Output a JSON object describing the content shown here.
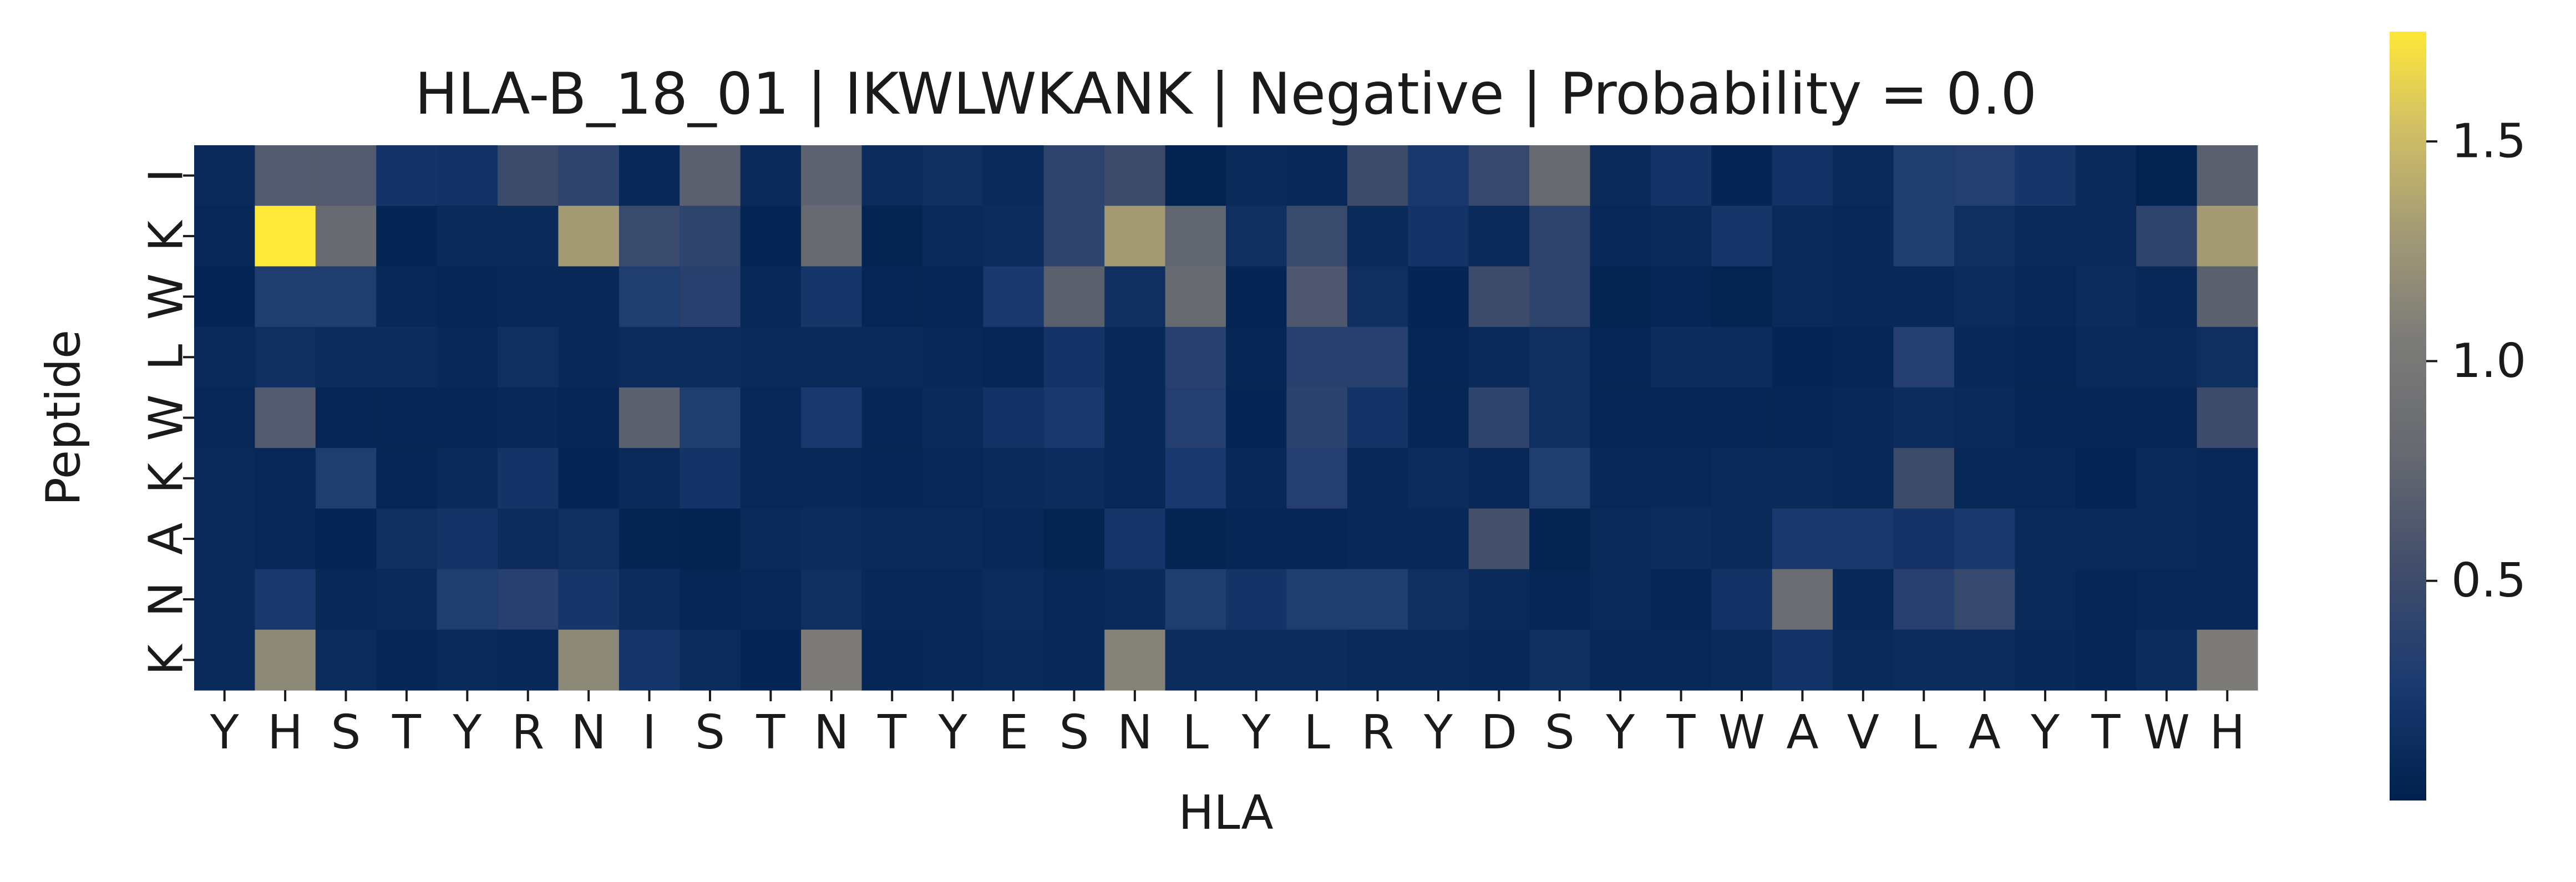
{
  "chart_data": {
    "type": "heatmap",
    "title": "HLA-B_18_01 | IKWLWKANK | Negative | Probability = 0.0",
    "xlabel": "HLA",
    "ylabel": "Peptide",
    "x_labels": [
      "Y",
      "H",
      "S",
      "T",
      "Y",
      "R",
      "N",
      "I",
      "S",
      "T",
      "N",
      "T",
      "Y",
      "E",
      "S",
      "N",
      "L",
      "Y",
      "L",
      "R",
      "Y",
      "D",
      "S",
      "Y",
      "T",
      "W",
      "A",
      "V",
      "L",
      "A",
      "Y",
      "T",
      "W",
      "H"
    ],
    "y_labels": [
      "I",
      "K",
      "W",
      "L",
      "W",
      "K",
      "A",
      "N",
      "K"
    ],
    "colormap": "cividis",
    "colorbar": {
      "min": 0.0,
      "max": 1.75,
      "ticks": [
        0.5,
        1.0,
        1.5
      ],
      "tick_labels": [
        "0.5",
        "1.0",
        "1.5"
      ]
    },
    "values": [
      [
        0.1,
        0.65,
        0.65,
        0.2,
        0.18,
        0.5,
        0.4,
        0.08,
        0.7,
        0.1,
        0.72,
        0.12,
        0.15,
        0.1,
        0.4,
        0.5,
        0.02,
        0.1,
        0.08,
        0.5,
        0.25,
        0.45,
        0.8,
        0.1,
        0.2,
        0.05,
        0.18,
        0.1,
        0.3,
        0.32,
        0.22,
        0.1,
        0.02,
        0.7
      ],
      [
        0.08,
        1.75,
        0.8,
        0.05,
        0.1,
        0.1,
        1.3,
        0.48,
        0.4,
        0.05,
        0.8,
        0.04,
        0.1,
        0.12,
        0.4,
        1.3,
        0.75,
        0.15,
        0.48,
        0.1,
        0.2,
        0.1,
        0.4,
        0.08,
        0.1,
        0.22,
        0.1,
        0.08,
        0.3,
        0.15,
        0.1,
        0.1,
        0.4,
        1.3
      ],
      [
        0.05,
        0.3,
        0.3,
        0.08,
        0.06,
        0.08,
        0.08,
        0.3,
        0.35,
        0.08,
        0.22,
        0.06,
        0.06,
        0.25,
        0.7,
        0.15,
        0.8,
        0.05,
        0.62,
        0.15,
        0.05,
        0.5,
        0.4,
        0.04,
        0.06,
        0.04,
        0.1,
        0.08,
        0.08,
        0.12,
        0.08,
        0.12,
        0.08,
        0.7
      ],
      [
        0.1,
        0.15,
        0.12,
        0.12,
        0.08,
        0.15,
        0.08,
        0.12,
        0.12,
        0.1,
        0.1,
        0.1,
        0.08,
        0.06,
        0.2,
        0.08,
        0.35,
        0.06,
        0.35,
        0.35,
        0.06,
        0.1,
        0.15,
        0.06,
        0.12,
        0.12,
        0.05,
        0.06,
        0.32,
        0.08,
        0.06,
        0.1,
        0.1,
        0.15
      ],
      [
        0.08,
        0.65,
        0.06,
        0.06,
        0.06,
        0.08,
        0.06,
        0.7,
        0.3,
        0.08,
        0.25,
        0.06,
        0.1,
        0.18,
        0.25,
        0.08,
        0.32,
        0.05,
        0.38,
        0.2,
        0.06,
        0.4,
        0.15,
        0.06,
        0.06,
        0.06,
        0.06,
        0.08,
        0.12,
        0.1,
        0.06,
        0.06,
        0.06,
        0.5
      ],
      [
        0.1,
        0.08,
        0.3,
        0.06,
        0.1,
        0.2,
        0.05,
        0.1,
        0.2,
        0.08,
        0.08,
        0.06,
        0.08,
        0.1,
        0.12,
        0.08,
        0.25,
        0.08,
        0.32,
        0.08,
        0.12,
        0.08,
        0.3,
        0.08,
        0.08,
        0.1,
        0.1,
        0.08,
        0.5,
        0.08,
        0.08,
        0.05,
        0.1,
        0.08
      ],
      [
        0.1,
        0.08,
        0.05,
        0.15,
        0.2,
        0.12,
        0.15,
        0.04,
        0.03,
        0.1,
        0.12,
        0.1,
        0.1,
        0.08,
        0.04,
        0.22,
        0.04,
        0.06,
        0.06,
        0.08,
        0.08,
        0.55,
        0.04,
        0.1,
        0.12,
        0.1,
        0.25,
        0.25,
        0.2,
        0.25,
        0.1,
        0.1,
        0.1,
        0.08
      ],
      [
        0.1,
        0.25,
        0.08,
        0.1,
        0.3,
        0.35,
        0.22,
        0.12,
        0.06,
        0.08,
        0.15,
        0.08,
        0.08,
        0.12,
        0.08,
        0.1,
        0.3,
        0.2,
        0.3,
        0.3,
        0.15,
        0.1,
        0.06,
        0.1,
        0.06,
        0.18,
        0.85,
        0.08,
        0.35,
        0.45,
        0.1,
        0.06,
        0.08,
        0.08
      ],
      [
        0.1,
        1.15,
        0.12,
        0.06,
        0.1,
        0.08,
        1.15,
        0.22,
        0.12,
        0.05,
        1.05,
        0.06,
        0.08,
        0.1,
        0.08,
        1.1,
        0.12,
        0.12,
        0.12,
        0.1,
        0.1,
        0.08,
        0.15,
        0.08,
        0.08,
        0.1,
        0.2,
        0.1,
        0.12,
        0.12,
        0.08,
        0.06,
        0.12,
        1.05
      ]
    ]
  }
}
